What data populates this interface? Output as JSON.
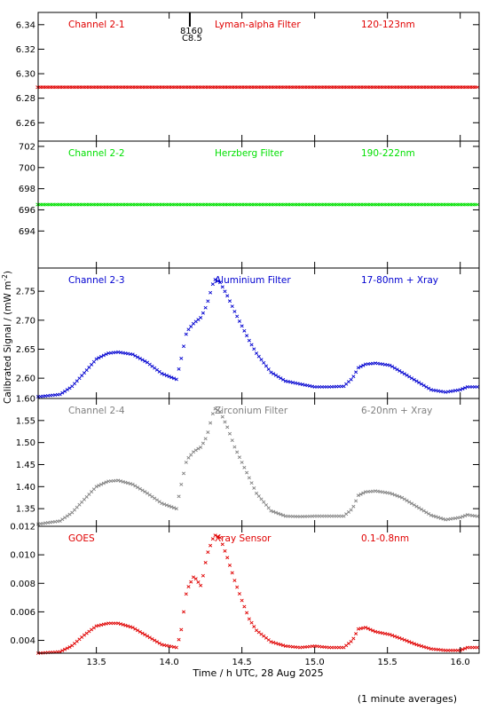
{
  "ylabel": "Calibrated Signal / (mW m",
  "ylabel_sup": "-2",
  "ylabel_close": ")",
  "xlabel": "Time / h UTC, 28 Aug 2025",
  "footnote": "(1 minute averages)",
  "event": {
    "time": 14.13,
    "label": "8160",
    "class": "C8.5"
  },
  "chart_data": [
    {
      "type": "scatter",
      "color": "#e00000",
      "labels": [
        "Channel 2-1",
        "Lyman-alpha Filter",
        "120-123nm"
      ],
      "ylim": [
        6.245,
        6.35
      ],
      "yticks": [
        6.26,
        6.28,
        6.3,
        6.32,
        6.34
      ],
      "ytick_labels": [
        "6.26",
        "6.28",
        "6.30",
        "6.32",
        "6.34"
      ],
      "profile": {
        "flat": 6.289
      }
    },
    {
      "type": "scatter",
      "color": "#00e000",
      "labels": [
        "Channel 2-2",
        "Herzberg Filter",
        "190-222nm"
      ],
      "ylim": [
        690.5,
        702.5
      ],
      "yticks": [
        694,
        696,
        698,
        700,
        702
      ],
      "ytick_labels": [
        "694",
        "696",
        "698",
        "700",
        "702"
      ],
      "profile": {
        "flat": 696.5
      }
    },
    {
      "type": "scatter",
      "color": "#0000d0",
      "labels": [
        "Channel 2-3",
        "Aluminium Filter",
        "17-80nm + Xray"
      ],
      "ylim": [
        2.565,
        2.79
      ],
      "yticks": [
        2.6,
        2.65,
        2.7,
        2.75
      ],
      "ytick_labels": [
        "2.60",
        "2.65",
        "2.70",
        "2.75"
      ],
      "profile": {
        "x": [
          13.1,
          13.25,
          13.33,
          13.42,
          13.5,
          13.58,
          13.65,
          13.75,
          13.85,
          13.95,
          14.05,
          14.08,
          14.12,
          14.17,
          14.22,
          14.26,
          14.31,
          14.35,
          14.4,
          14.45,
          14.5,
          14.55,
          14.6,
          14.7,
          14.8,
          14.9,
          15.0,
          15.1,
          15.2,
          15.26,
          15.3,
          15.35,
          15.42,
          15.52,
          15.6,
          15.7,
          15.8,
          15.9,
          16.0,
          16.05,
          16.13
        ],
        "y": [
          2.568,
          2.572,
          2.585,
          2.61,
          2.633,
          2.643,
          2.645,
          2.641,
          2.627,
          2.608,
          2.598,
          2.63,
          2.68,
          2.695,
          2.705,
          2.727,
          2.771,
          2.765,
          2.742,
          2.715,
          2.69,
          2.665,
          2.643,
          2.61,
          2.595,
          2.59,
          2.585,
          2.585,
          2.586,
          2.6,
          2.618,
          2.624,
          2.626,
          2.622,
          2.61,
          2.595,
          2.58,
          2.576,
          2.58,
          2.585,
          2.585
        ]
      }
    },
    {
      "type": "scatter",
      "color": "#808080",
      "labels": [
        "Channel 2-4",
        "Zirconium Filter",
        "6-20nm + Xray"
      ],
      "ylim": [
        1.31,
        1.6
      ],
      "yticks": [
        1.35,
        1.4,
        1.45,
        1.5,
        1.55,
        1.6
      ],
      "ytick_labels": [
        "1.35",
        "1.40",
        "1.45",
        "1.50",
        "1.55",
        "1.60"
      ],
      "profile": {
        "x": [
          13.1,
          13.25,
          13.33,
          13.42,
          13.5,
          13.58,
          13.65,
          13.75,
          13.85,
          13.95,
          14.05,
          14.08,
          14.12,
          14.17,
          14.22,
          14.26,
          14.31,
          14.35,
          14.4,
          14.45,
          14.5,
          14.55,
          14.6,
          14.7,
          14.8,
          14.9,
          15.0,
          15.1,
          15.2,
          15.26,
          15.3,
          15.35,
          15.42,
          15.52,
          15.6,
          15.7,
          15.8,
          15.9,
          16.0,
          16.05,
          16.13
        ],
        "y": [
          1.315,
          1.322,
          1.34,
          1.372,
          1.4,
          1.412,
          1.414,
          1.405,
          1.385,
          1.362,
          1.35,
          1.4,
          1.46,
          1.48,
          1.49,
          1.515,
          1.578,
          1.57,
          1.535,
          1.49,
          1.455,
          1.42,
          1.385,
          1.345,
          1.333,
          1.332,
          1.333,
          1.333,
          1.333,
          1.35,
          1.38,
          1.388,
          1.39,
          1.385,
          1.375,
          1.355,
          1.335,
          1.325,
          1.33,
          1.336,
          1.332
        ]
      }
    },
    {
      "type": "scatter",
      "color": "#e00000",
      "labels": [
        "GOES",
        "Xray Sensor",
        "0.1-0.8nm"
      ],
      "ylim": [
        0.0031,
        0.012
      ],
      "yticks": [
        0.004,
        0.006,
        0.008,
        0.01,
        0.012
      ],
      "ytick_labels": [
        "0.004",
        "0.006",
        "0.008",
        "0.010",
        "0.012"
      ],
      "profile": {
        "x": [
          13.1,
          13.25,
          13.33,
          13.42,
          13.5,
          13.58,
          13.65,
          13.75,
          13.85,
          13.95,
          14.05,
          14.08,
          14.12,
          14.17,
          14.22,
          14.26,
          14.31,
          14.35,
          14.4,
          14.45,
          14.5,
          14.55,
          14.6,
          14.7,
          14.8,
          14.9,
          15.0,
          15.1,
          15.2,
          15.26,
          15.3,
          15.35,
          15.42,
          15.52,
          15.6,
          15.7,
          15.8,
          15.9,
          16.0,
          16.05,
          16.13
        ],
        "y": [
          0.0031,
          0.0032,
          0.0036,
          0.0044,
          0.005,
          0.0052,
          0.0052,
          0.0049,
          0.0043,
          0.0037,
          0.0035,
          0.0045,
          0.0075,
          0.0085,
          0.0078,
          0.01,
          0.0114,
          0.0112,
          0.0098,
          0.0082,
          0.0068,
          0.0055,
          0.0047,
          0.0039,
          0.0036,
          0.0035,
          0.0036,
          0.0035,
          0.0035,
          0.004,
          0.0048,
          0.0049,
          0.0046,
          0.0044,
          0.0041,
          0.0037,
          0.0034,
          0.0033,
          0.0033,
          0.0035,
          0.0035
        ]
      }
    }
  ],
  "xaxis": {
    "xlim": [
      13.1,
      16.13
    ],
    "ticks": [
      13.5,
      14.0,
      14.5,
      15.0,
      15.5,
      16.0
    ],
    "tick_labels": [
      "13.5",
      "14.0",
      "14.5",
      "15.0",
      "15.5",
      "16.0"
    ]
  }
}
